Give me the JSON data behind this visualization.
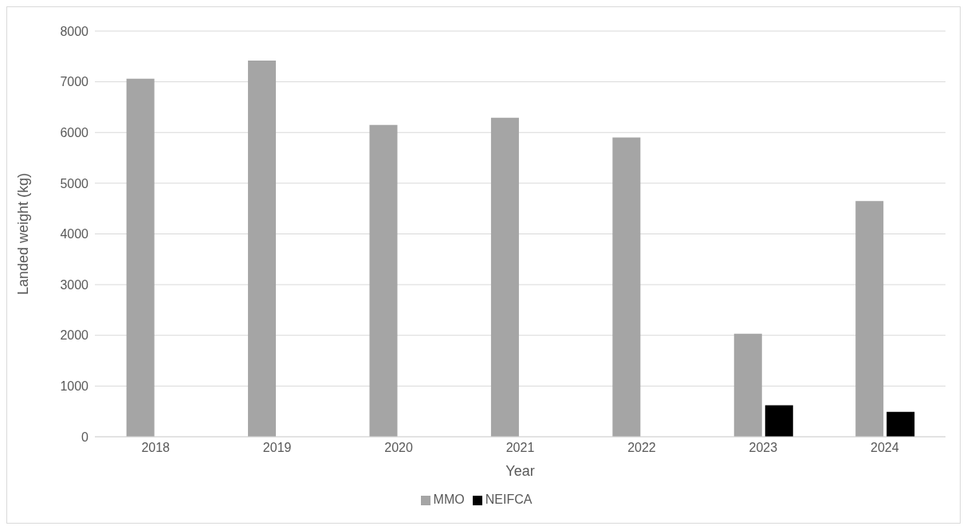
{
  "chart_data": {
    "type": "bar",
    "xlabel": "Year",
    "ylabel": "Landed weight (kg)",
    "categories": [
      "2018",
      "2019",
      "2020",
      "2021",
      "2022",
      "2023",
      "2024"
    ],
    "series": [
      {
        "name": "MMO",
        "color": "#a5a5a5",
        "values": [
          7060,
          7420,
          6150,
          6290,
          5900,
          2030,
          4650
        ]
      },
      {
        "name": "NEIFCA",
        "color": "#000000",
        "values": [
          null,
          null,
          null,
          null,
          null,
          620,
          490
        ]
      }
    ],
    "ylim": [
      0,
      8000
    ],
    "yticks": [
      0,
      1000,
      2000,
      3000,
      4000,
      5000,
      6000,
      7000,
      8000
    ],
    "grid": "y",
    "legend": "bottom"
  }
}
